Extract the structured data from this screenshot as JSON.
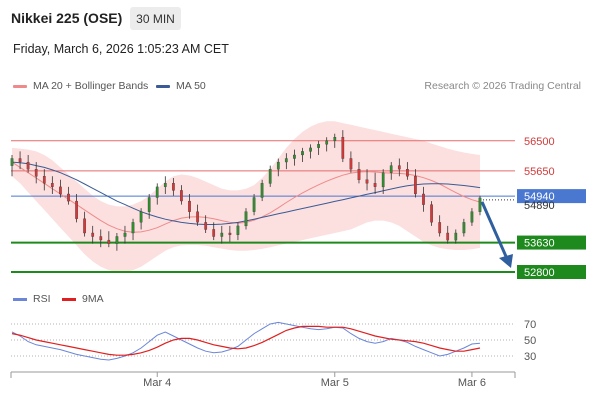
{
  "header": {
    "title": "Nikkei 225 (OSE)",
    "timeframe": "30 MIN",
    "timestamp": "Friday, March 6, 2026 1:05:23 AM CET"
  },
  "legend": {
    "ma20_label": "MA 20 + Bollinger Bands",
    "ma50_label": "MA 50",
    "credit": "Research © 2026 Trading Central",
    "rsi_label": "RSI",
    "rsi_ma_label": "9MA"
  },
  "colors": {
    "ma20": "#f08a8a",
    "ma50": "#3a5b96",
    "band_fill": "#fbd9d9",
    "resistance": "#e36b6b",
    "current": "#4a78d0",
    "support": "#1e8a1e",
    "arrow": "#2f5f9e",
    "candle_up": "#2f8f2f",
    "candle_down": "#d23a3a",
    "rsi": "#6b86d9",
    "rsi_ma": "#e02020"
  },
  "chart_data": {
    "type": "candlestick",
    "x_tick_labels": [
      "Mar 4",
      "Mar 5",
      "Mar 6"
    ],
    "price_levels": [
      {
        "label": "56500",
        "value": 56500,
        "kind": "resistance"
      },
      {
        "label": "55650",
        "value": 55650,
        "kind": "resistance"
      },
      {
        "label": "54940",
        "value": 54940,
        "kind": "current"
      },
      {
        "label": "54890",
        "value": 54890,
        "kind": "last"
      },
      {
        "label": "53630",
        "value": 53630,
        "kind": "support"
      },
      {
        "label": "52800",
        "value": 52800,
        "kind": "support"
      }
    ],
    "candles": [
      [
        55800,
        56100,
        55500,
        56000
      ],
      [
        56000,
        56200,
        55700,
        55900
      ],
      [
        55900,
        56100,
        55600,
        55700
      ],
      [
        55700,
        55900,
        55300,
        55500
      ],
      [
        55500,
        55700,
        55100,
        55300
      ],
      [
        55300,
        55500,
        55000,
        55200
      ],
      [
        55200,
        55400,
        54900,
        55000
      ],
      [
        55000,
        55200,
        54700,
        54800
      ],
      [
        54800,
        55000,
        54200,
        54300
      ],
      [
        54300,
        54500,
        53800,
        53900
      ],
      [
        53900,
        54100,
        53600,
        53800
      ],
      [
        53800,
        54000,
        53500,
        53700
      ],
      [
        53700,
        53950,
        53500,
        53600
      ],
      [
        53600,
        53900,
        53400,
        53800
      ],
      [
        53800,
        54100,
        53600,
        53900
      ],
      [
        53900,
        54300,
        53700,
        54200
      ],
      [
        54200,
        54600,
        54000,
        54500
      ],
      [
        54500,
        55000,
        54300,
        54900
      ],
      [
        54900,
        55300,
        54700,
        55200
      ],
      [
        55200,
        55500,
        55000,
        55300
      ],
      [
        55300,
        55450,
        54950,
        55100
      ],
      [
        55100,
        55250,
        54700,
        54800
      ],
      [
        54800,
        55000,
        54300,
        54500
      ],
      [
        54500,
        54700,
        54100,
        54200
      ],
      [
        54200,
        54400,
        53900,
        54000
      ],
      [
        54000,
        54200,
        53700,
        53800
      ],
      [
        53800,
        54100,
        53600,
        53900
      ],
      [
        53900,
        54100,
        53650,
        53850
      ],
      [
        53850,
        54200,
        53700,
        54100
      ],
      [
        54100,
        54600,
        54000,
        54500
      ],
      [
        54500,
        55000,
        54400,
        54900
      ],
      [
        54900,
        55400,
        54800,
        55300
      ],
      [
        55300,
        55800,
        55200,
        55700
      ],
      [
        55700,
        56000,
        55500,
        55900
      ],
      [
        55900,
        56150,
        55700,
        56000
      ],
      [
        56000,
        56250,
        55800,
        56100
      ],
      [
        56100,
        56300,
        55900,
        56200
      ],
      [
        56200,
        56400,
        56000,
        56300
      ],
      [
        56300,
        56500,
        56100,
        56400
      ],
      [
        56400,
        56600,
        56200,
        56500
      ],
      [
        56500,
        56700,
        56300,
        56600
      ],
      [
        56600,
        56800,
        55900,
        56000
      ],
      [
        56000,
        56200,
        55600,
        55700
      ],
      [
        55700,
        55900,
        55300,
        55400
      ],
      [
        55400,
        55700,
        55100,
        55300
      ],
      [
        55300,
        55600,
        55000,
        55200
      ],
      [
        55200,
        55700,
        55000,
        55600
      ],
      [
        55600,
        55900,
        55400,
        55800
      ],
      [
        55800,
        56000,
        55500,
        55700
      ],
      [
        55700,
        55900,
        55400,
        55500
      ],
      [
        55500,
        55700,
        54900,
        55000
      ],
      [
        55000,
        55200,
        54500,
        54700
      ],
      [
        54700,
        54800,
        54100,
        54200
      ],
      [
        54200,
        54400,
        53800,
        53900
      ],
      [
        53900,
        54100,
        53600,
        53700
      ],
      [
        53700,
        54000,
        53600,
        53900
      ],
      [
        53900,
        54300,
        53800,
        54200
      ],
      [
        54200,
        54600,
        54100,
        54500
      ],
      [
        54500,
        54950,
        54400,
        54890
      ]
    ],
    "ma20": [
      55900,
      55750,
      55600,
      55450,
      55300,
      55150,
      55000,
      54850,
      54700,
      54550,
      54400,
      54250,
      54120,
      54020,
      53950,
      53920,
      53930,
      53980,
      54050,
      54150,
      54250,
      54320,
      54350,
      54360,
      54340,
      54300,
      54250,
      54200,
      54180,
      54200,
      54260,
      54350,
      54470,
      54610,
      54760,
      54900,
      55030,
      55150,
      55260,
      55360,
      55450,
      55530,
      55590,
      55620,
      55630,
      55620,
      55600,
      55590,
      55580,
      55560,
      55520,
      55460,
      55380,
      55280,
      55160,
      55040,
      54930,
      54840,
      54770
    ],
    "band_upper": [
      56300,
      56280,
      56250,
      56200,
      56100,
      55950,
      55750,
      55550,
      55350,
      55150,
      54950,
      54800,
      54700,
      54650,
      54650,
      54700,
      54800,
      54950,
      55150,
      55350,
      55500,
      55550,
      55520,
      55450,
      55350,
      55250,
      55150,
      55100,
      55100,
      55150,
      55250,
      55450,
      55700,
      56000,
      56300,
      56550,
      56750,
      56900,
      57000,
      57050,
      57050,
      57000,
      56950,
      56900,
      56850,
      56800,
      56750,
      56700,
      56650,
      56600,
      56550,
      56500,
      56420,
      56350,
      56280,
      56220,
      56170,
      56130,
      56100
    ],
    "band_lower": [
      55500,
      55300,
      55050,
      54800,
      54550,
      54300,
      54050,
      53800,
      53550,
      53300,
      53100,
      52950,
      52850,
      52800,
      52800,
      52850,
      52950,
      53100,
      53250,
      53400,
      53500,
      53550,
      53560,
      53560,
      53540,
      53500,
      53460,
      53420,
      53400,
      53400,
      53420,
      53450,
      53500,
      53550,
      53600,
      53650,
      53700,
      53750,
      53800,
      53850,
      53900,
      53950,
      54000,
      54100,
      54200,
      54250,
      54250,
      54200,
      54100,
      53950,
      53800,
      53650,
      53550,
      53480,
      53440,
      53420,
      53420,
      53440,
      53480
    ],
    "ma50": [
      55900,
      55880,
      55850,
      55800,
      55750,
      55680,
      55600,
      55500,
      55400,
      55280,
      55160,
      55040,
      54920,
      54800,
      54700,
      54600,
      54500,
      54420,
      54350,
      54290,
      54240,
      54200,
      54170,
      54150,
      54140,
      54140,
      54150,
      54170,
      54200,
      54240,
      54290,
      54340,
      54390,
      54440,
      54490,
      54540,
      54590,
      54640,
      54690,
      54740,
      54790,
      54840,
      54890,
      54940,
      54990,
      55040,
      55090,
      55140,
      55190,
      55230,
      55260,
      55280,
      55290,
      55290,
      55280,
      55260,
      55240,
      55210,
      55180
    ],
    "rsi_axis_ticks": [
      70,
      50,
      30
    ],
    "rsi": [
      60,
      55,
      48,
      44,
      42,
      40,
      38,
      35,
      32,
      30,
      28,
      26,
      25,
      27,
      30,
      34,
      40,
      48,
      56,
      60,
      55,
      50,
      45,
      40,
      36,
      34,
      35,
      38,
      42,
      50,
      58,
      64,
      70,
      72,
      70,
      68,
      66,
      64,
      63,
      64,
      66,
      65,
      58,
      52,
      48,
      46,
      48,
      52,
      50,
      47,
      42,
      38,
      34,
      30,
      32,
      36,
      40,
      45,
      46
    ],
    "rsi_ma": [
      58,
      56,
      53,
      50,
      48,
      46,
      44,
      42,
      40,
      38,
      36,
      34,
      32,
      31,
      31,
      32,
      34,
      37,
      41,
      46,
      50,
      52,
      52,
      50,
      47,
      44,
      42,
      40,
      39,
      40,
      43,
      47,
      52,
      57,
      62,
      65,
      67,
      67,
      67,
      66,
      66,
      66,
      64,
      61,
      58,
      55,
      53,
      51,
      50,
      49,
      48,
      46,
      43,
      40,
      38,
      36,
      36,
      38,
      40
    ]
  }
}
